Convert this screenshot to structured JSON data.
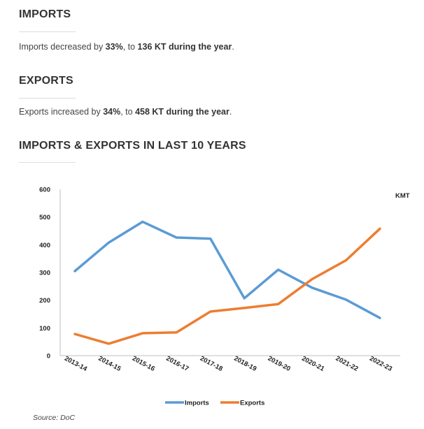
{
  "imports": {
    "heading": "IMPORTS",
    "text_before": "Imports decreased by ",
    "pct": "33%",
    "text_mid": ", to ",
    "value": "136 KT during the year",
    "text_end": "."
  },
  "exports": {
    "heading": "EXPORTS",
    "text_before": "Exports increased by ",
    "pct": "34%",
    "text_mid": ", to ",
    "value": "458 KT during the year",
    "text_end": "."
  },
  "chart_section": {
    "heading": "IMPORTS & EXPORTS IN LAST 10 YEARS"
  },
  "source": "Source: DoC",
  "colors": {
    "imports": "#5b9bd5",
    "exports": "#ed7d31"
  },
  "chart_data": {
    "type": "line",
    "unit_label": "KMT",
    "categories": [
      "2013-14",
      "2014-15",
      "2015-16",
      "2016-17",
      "2017-18",
      "2018-19",
      "2019-20",
      "2020-21",
      "2021-22",
      "2022-23"
    ],
    "ylim": [
      0,
      600
    ],
    "yticks": [
      0,
      100,
      200,
      300,
      400,
      500,
      600
    ],
    "legend_position": "bottom-center",
    "series": [
      {
        "name": "Imports",
        "values": [
          305,
          408,
          483,
          426,
          422,
          207,
          310,
          245,
          202,
          136
        ]
      },
      {
        "name": "Exports",
        "values": [
          78,
          43,
          81,
          84,
          159,
          172,
          186,
          276,
          344,
          458
        ]
      }
    ]
  }
}
